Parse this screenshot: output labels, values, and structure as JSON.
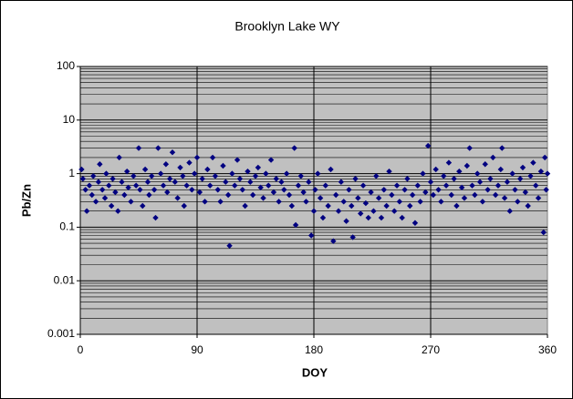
{
  "chart_data": {
    "type": "scatter",
    "title": "Brooklyn Lake WY",
    "x_label": "DOY",
    "y_label": "Pb/Zn",
    "xlim": [
      0,
      360
    ],
    "xticks": [
      0,
      90,
      180,
      270,
      360
    ],
    "ylim": [
      0.001,
      100
    ],
    "yticks": [
      0.001,
      0.01,
      0.1,
      1,
      10,
      100
    ],
    "y_log": true,
    "grid": true,
    "series": [
      {
        "name": "Pb/Zn",
        "color": "#000080",
        "x": [
          1,
          2,
          4,
          5,
          7,
          9,
          10,
          12,
          14,
          15,
          17,
          19,
          20,
          22,
          24,
          25,
          27,
          29,
          30,
          32,
          34,
          36,
          37,
          39,
          41,
          43,
          45,
          46,
          48,
          50,
          52,
          53,
          55,
          57,
          58,
          60,
          62,
          64,
          66,
          67,
          69,
          71,
          73,
          75,
          77,
          79,
          80,
          82,
          84,
          86,
          88,
          90,
          92,
          94,
          96,
          98,
          100,
          102,
          104,
          106,
          108,
          110,
          112,
          114,
          115,
          117,
          119,
          121,
          123,
          125,
          127,
          129,
          131,
          133,
          135,
          137,
          139,
          141,
          143,
          145,
          147,
          149,
          151,
          153,
          155,
          157,
          159,
          161,
          163,
          165,
          166,
          168,
          170,
          172,
          174,
          176,
          178,
          180,
          181,
          183,
          185,
          187,
          189,
          191,
          193,
          195,
          197,
          199,
          201,
          203,
          205,
          207,
          209,
          210,
          212,
          214,
          216,
          218,
          220,
          222,
          224,
          226,
          228,
          230,
          232,
          234,
          236,
          238,
          240,
          242,
          244,
          246,
          248,
          250,
          252,
          254,
          256,
          258,
          260,
          262,
          264,
          266,
          268,
          270,
          272,
          274,
          276,
          278,
          280,
          282,
          284,
          286,
          288,
          290,
          292,
          294,
          296,
          298,
          300,
          302,
          304,
          306,
          308,
          310,
          312,
          314,
          316,
          318,
          320,
          322,
          324,
          325,
          327,
          329,
          331,
          333,
          335,
          337,
          339,
          341,
          343,
          345,
          347,
          349,
          351,
          353,
          355,
          357,
          358,
          359,
          360
        ],
        "values": [
          1.2,
          0.8,
          0.5,
          0.2,
          0.6,
          0.4,
          0.9,
          0.3,
          0.7,
          1.5,
          0.5,
          0.35,
          1.0,
          0.6,
          0.25,
          0.8,
          0.45,
          0.2,
          2.0,
          0.7,
          0.4,
          1.1,
          0.55,
          0.3,
          0.9,
          0.6,
          3.0,
          0.5,
          0.25,
          1.2,
          0.7,
          0.4,
          0.9,
          0.5,
          0.15,
          3.0,
          1.0,
          0.6,
          1.5,
          0.45,
          0.8,
          2.5,
          0.7,
          0.35,
          1.3,
          0.9,
          0.25,
          0.6,
          1.6,
          0.5,
          1.0,
          2.0,
          0.45,
          0.8,
          0.3,
          1.2,
          0.6,
          2.0,
          0.9,
          0.5,
          0.3,
          1.4,
          0.7,
          0.4,
          0.045,
          1.0,
          0.6,
          1.8,
          0.8,
          0.5,
          0.25,
          1.1,
          0.7,
          0.4,
          0.9,
          1.3,
          0.55,
          0.35,
          1.0,
          0.6,
          1.8,
          0.45,
          0.8,
          0.3,
          0.7,
          0.5,
          1.0,
          0.4,
          0.25,
          3.0,
          0.11,
          0.6,
          0.9,
          0.45,
          0.3,
          0.7,
          0.07,
          0.2,
          0.5,
          1.0,
          0.35,
          0.15,
          0.6,
          0.25,
          1.2,
          0.055,
          0.4,
          0.2,
          0.7,
          0.3,
          0.13,
          0.5,
          0.25,
          0.065,
          0.8,
          0.35,
          0.18,
          0.6,
          0.28,
          0.15,
          0.45,
          0.2,
          0.9,
          0.35,
          0.15,
          0.5,
          0.25,
          1.1,
          0.4,
          0.2,
          0.6,
          0.3,
          0.15,
          0.5,
          0.8,
          0.25,
          0.4,
          0.12,
          0.6,
          0.3,
          1.0,
          0.45,
          3.3,
          0.7,
          0.4,
          1.2,
          0.5,
          0.3,
          0.9,
          0.6,
          1.6,
          0.4,
          0.8,
          0.25,
          1.1,
          0.55,
          0.35,
          1.4,
          3.0,
          0.6,
          0.4,
          1.0,
          0.7,
          0.3,
          1.5,
          0.5,
          0.8,
          2.0,
          0.4,
          0.6,
          1.2,
          3.0,
          0.35,
          0.7,
          0.2,
          1.0,
          0.5,
          0.3,
          0.8,
          1.3,
          0.45,
          0.25,
          0.9,
          1.6,
          0.6,
          0.35,
          1.1,
          0.08,
          2.0,
          0.5,
          1.0
        ]
      }
    ]
  }
}
